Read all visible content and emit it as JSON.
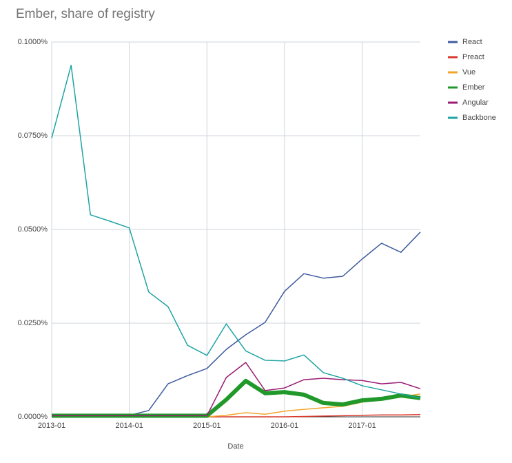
{
  "chart_data": {
    "type": "line",
    "title": "Ember, share of registry",
    "x_label": "Date",
    "x": [
      "2013-01",
      "2013-04",
      "2013-07",
      "2013-10",
      "2014-01",
      "2014-04",
      "2014-07",
      "2014-10",
      "2015-01",
      "2015-04",
      "2015-07",
      "2015-10",
      "2016-01",
      "2016-04",
      "2016-07",
      "2016-10",
      "2017-01",
      "2017-04",
      "2017-07",
      "2017-10"
    ],
    "xlim": [
      "2013-01",
      "2017-10"
    ],
    "xticks": [
      "2013-01",
      "2014-01",
      "2015-01",
      "2016-01",
      "2017-01"
    ],
    "ylim": [
      0,
      0.1
    ],
    "yticks": [
      {
        "value": 0,
        "label": "0.0000%"
      },
      {
        "value": 0.025,
        "label": "0.0250%"
      },
      {
        "value": 0.05,
        "label": "0.0500%"
      },
      {
        "value": 0.075,
        "label": "0.0750%"
      },
      {
        "value": 0.1,
        "label": "0.1000%"
      }
    ],
    "grid": true,
    "legend": "right",
    "series": [
      {
        "name": "React",
        "color": "#3d5a9e",
        "width": 1.5,
        "values": [
          0.0002,
          0.0002,
          0.0002,
          0.0002,
          0.0004,
          0.0017,
          0.0088,
          0.011,
          0.0129,
          0.018,
          0.0219,
          0.0252,
          0.0335,
          0.0382,
          0.037,
          0.0375,
          0.0421,
          0.0463,
          0.0439,
          0.0493
        ]
      },
      {
        "name": "Preact",
        "color": "#d93a2b",
        "width": 1.5,
        "values": [
          0,
          0,
          0,
          0,
          0,
          0,
          0,
          0,
          0,
          0,
          0,
          0,
          0,
          0.0001,
          0.0002,
          0.0003,
          0.0004,
          0.0005,
          0.0005,
          0.0006
        ]
      },
      {
        "name": "Vue",
        "color": "#f2a52a",
        "width": 1.5,
        "values": [
          0,
          0,
          0,
          0,
          0,
          0,
          0.0007,
          0.0004,
          0,
          0.0004,
          0.0011,
          0.0007,
          0.0015,
          0.002,
          0.0024,
          0.0028,
          0.0039,
          0.0046,
          0.0053,
          0.0061
        ]
      },
      {
        "name": "Ember",
        "color": "#21992a",
        "width": 6,
        "values": [
          0.0003,
          0.0003,
          0.0003,
          0.0003,
          0.0003,
          0.0003,
          0.0003,
          0.0003,
          0.0003,
          0.0046,
          0.0096,
          0.0063,
          0.0066,
          0.0059,
          0.0037,
          0.0033,
          0.0044,
          0.0048,
          0.0057,
          0.005
        ]
      },
      {
        "name": "Angular",
        "color": "#9b1b74",
        "width": 1.5,
        "values": [
          0.0003,
          0.0003,
          0.0003,
          0.0003,
          0.0003,
          0.0003,
          0.0003,
          0.0003,
          0.0003,
          0.0105,
          0.0145,
          0.007,
          0.0077,
          0.0099,
          0.0103,
          0.0099,
          0.0097,
          0.0088,
          0.0092,
          0.0075
        ]
      },
      {
        "name": "Backbone",
        "color": "#1fa3a3",
        "width": 1.5,
        "values": [
          0.0744,
          0.0938,
          0.0539,
          0.0522,
          0.0504,
          0.0333,
          0.0294,
          0.0191,
          0.0164,
          0.0248,
          0.0176,
          0.0151,
          0.0149,
          0.0165,
          0.0118,
          0.0103,
          0.0083,
          0.0072,
          0.0061,
          0.005
        ]
      }
    ]
  }
}
